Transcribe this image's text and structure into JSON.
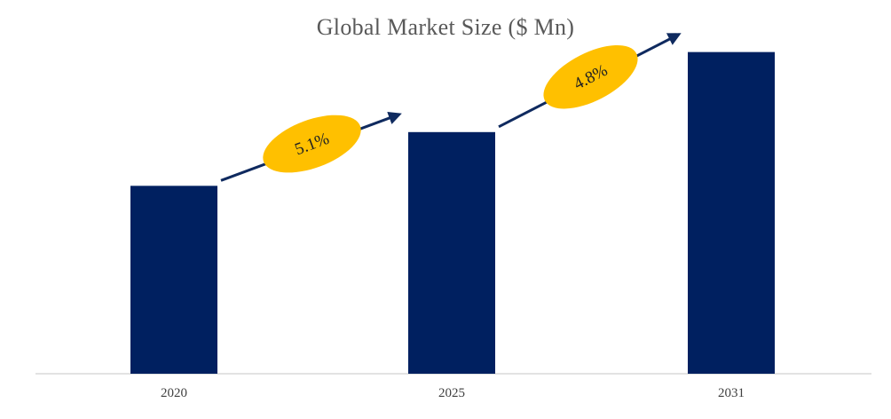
{
  "chart_data": {
    "type": "bar",
    "title": "Global Market Size ($ Mn)",
    "xlabel": "",
    "ylabel": "",
    "categories": [
      "2020",
      "2025",
      "2031"
    ],
    "values": [
      100,
      128.6,
      171.2
    ],
    "ylim": [
      0,
      180
    ],
    "grid": false,
    "legend": "none",
    "annotations": [
      {
        "text": "5.1%",
        "from": "2020",
        "to": "2025"
      },
      {
        "text": "4.8%",
        "from": "2025",
        "to": "2031"
      }
    ]
  },
  "colors": {
    "bar": "#002060",
    "arrow": "#0f2a5f",
    "bubble": "#ffc000",
    "axis": "#d9d9d9",
    "title": "#595959"
  }
}
